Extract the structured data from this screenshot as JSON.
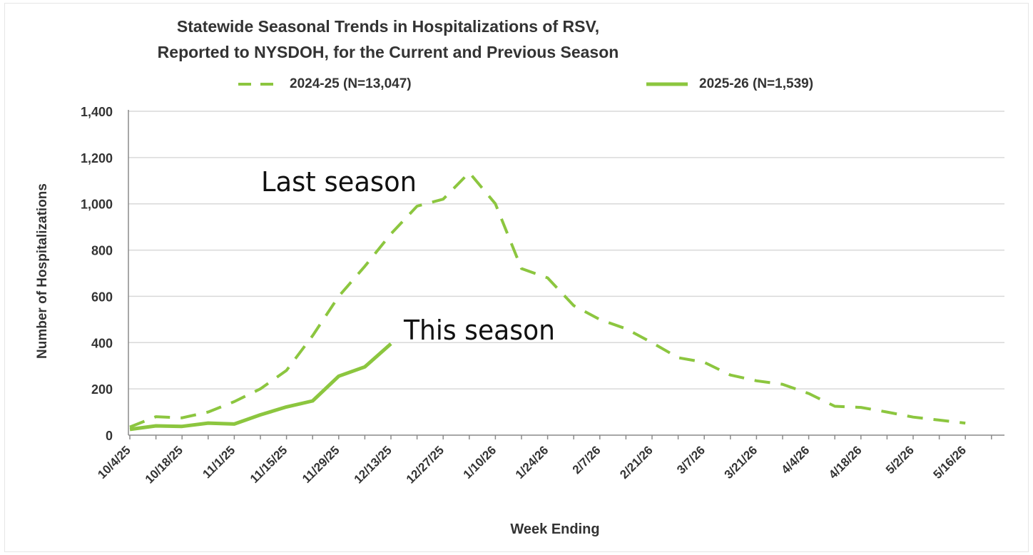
{
  "chart_data": {
    "type": "line",
    "title": "Statewide Seasonal Trends in Hospitalizations of RSV,",
    "subtitle": "Reported to NYSDOH, for the Current and Previous Season",
    "xlabel": "Week Ending",
    "ylabel": "Number of Hospitalizations",
    "ylim": [
      0,
      1400
    ],
    "yticks": [
      0,
      200,
      400,
      600,
      800,
      1000,
      1200,
      1400
    ],
    "ytick_labels": [
      "0",
      "200",
      "400",
      "600",
      "800",
      "1,000",
      "1,200",
      "1,400"
    ],
    "xtick_labels": [
      "10/4/25",
      "10/18/25",
      "11/1/25",
      "11/15/25",
      "11/29/25",
      "12/13/25",
      "12/27/25",
      "1/10/26",
      "1/24/26",
      "2/7/26",
      "2/21/26",
      "3/7/26",
      "3/21/26",
      "4/4/26",
      "4/18/26",
      "5/2/26",
      "5/16/26"
    ],
    "grid": true,
    "color": "#8cc63f",
    "series": [
      {
        "name": "2024-25 (N=13,047)",
        "style": "dashed",
        "values": [
          35,
          80,
          75,
          100,
          145,
          200,
          280,
          430,
          600,
          730,
          870,
          990,
          1020,
          1135,
          1000,
          720,
          680,
          560,
          500,
          460,
          400,
          335,
          315,
          260,
          235,
          220,
          180,
          125,
          120,
          100,
          78,
          65,
          52
        ]
      },
      {
        "name": "2025-26 (N=1,539)",
        "style": "solid",
        "values": [
          25,
          40,
          38,
          52,
          48,
          88,
          122,
          148,
          255,
          295,
          395
        ]
      }
    ],
    "annotations": [
      {
        "text": "Last season",
        "target_series": "2024-25 (N=13,047)"
      },
      {
        "text": "This season",
        "target_series": "2025-26 (N=1,539)"
      }
    ]
  }
}
